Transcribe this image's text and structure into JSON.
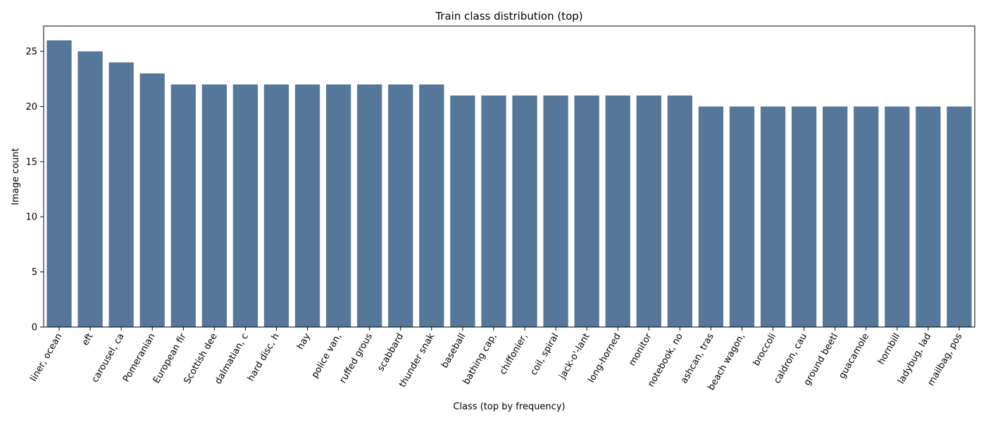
{
  "chart_data": {
    "type": "bar",
    "title": "Train class distribution (top)",
    "xlabel": "Class (top by frequency)",
    "ylabel": "Image count",
    "ylim": [
      0,
      27.3
    ],
    "yticks": [
      0,
      5,
      10,
      15,
      20,
      25
    ],
    "bar_color": "#557799",
    "grid": false,
    "categories": [
      "liner, ocean",
      "eft",
      "carousel, ca",
      "Pomeranian",
      "European fir",
      "Scottish dee",
      "dalmatian, c",
      "hard disc, h",
      "hay",
      "police van,",
      "ruffed grous",
      "scabbard",
      "thunder snak",
      "baseball",
      "bathing cap,",
      "chiffonier,",
      "coil, spiral",
      "jack-o'-lant",
      "long-horned",
      "monitor",
      "notebook, no",
      "ashcan, tras",
      "beach wagon,",
      "broccoli",
      "caldron, cau",
      "ground beetl",
      "guacamole",
      "hornbill",
      "ladybug, lad",
      "mailbag, pos"
    ],
    "values": [
      26,
      25,
      24,
      23,
      22,
      22,
      22,
      22,
      22,
      22,
      22,
      22,
      22,
      21,
      21,
      21,
      21,
      21,
      21,
      21,
      21,
      20,
      20,
      20,
      20,
      20,
      20,
      20,
      20,
      20
    ]
  }
}
